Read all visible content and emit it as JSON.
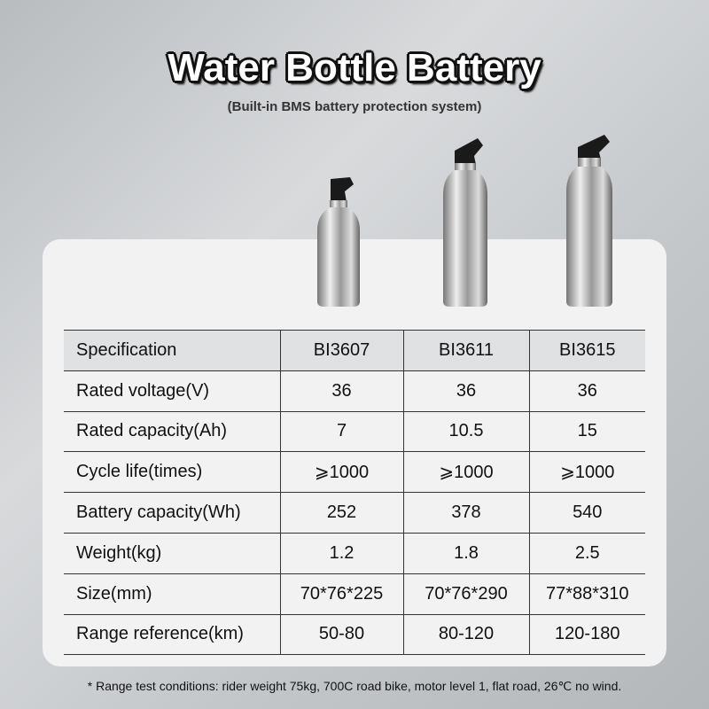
{
  "title": "Water Bottle Battery",
  "subtitle": "(Built-in BMS battery protection system)",
  "table": {
    "header": [
      "Specification",
      "BI3607",
      "BI3611",
      "BI3615"
    ],
    "rows": [
      [
        "Rated voltage(V)",
        "36",
        "36",
        "36"
      ],
      [
        "Rated capacity(Ah)",
        "7",
        "10.5",
        "15"
      ],
      [
        "Cycle life(times)",
        "⩾1000",
        "⩾1000",
        "⩾1000"
      ],
      [
        "Battery capacity(Wh)",
        "252",
        "378",
        "540"
      ],
      [
        "Weight(kg)",
        "1.2",
        "1.8",
        "2.5"
      ],
      [
        "Size(mm)",
        "70*76*225",
        "70*76*290",
        "77*88*310"
      ],
      [
        "Range reference(km)",
        "50-80",
        "80-120",
        "120-180"
      ]
    ]
  },
  "footnote": "* Range test conditions: rider weight 75kg, 700C road bike, motor level 1, flat road, 26℃ no wind.",
  "colors": {
    "header_row": "#dfe1e3",
    "card": "#f2f2f2"
  }
}
